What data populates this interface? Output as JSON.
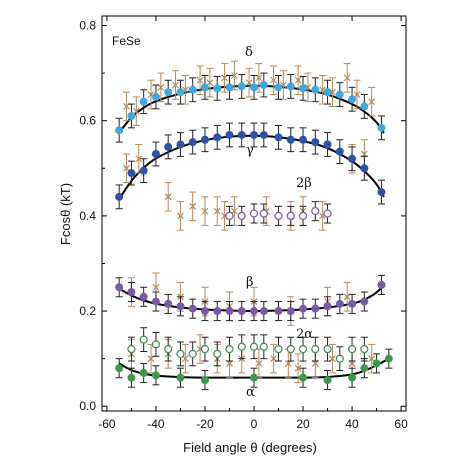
{
  "chart_data": {
    "type": "scatter",
    "title": "",
    "annotation": "FeSe",
    "xlabel": "Field angle θ (degrees)",
    "ylabel": "Fcosθ (kT)",
    "xlim": [
      -62,
      62
    ],
    "ylim": [
      -0.01,
      0.82
    ],
    "xticks": [
      -60,
      -40,
      -20,
      0,
      20,
      40,
      60
    ],
    "yticks": [
      0.0,
      0.2,
      0.4,
      0.6,
      0.8
    ],
    "grid": false,
    "legend": "none",
    "colors": {
      "delta": "#3fa9df",
      "gamma": "#2d53a8",
      "beta": "#7a5aa8",
      "alpha": "#3a9a4a",
      "two_beta": "#7a5aa8",
      "two_alpha": "#3f8a55",
      "crosses": "#b38a5c",
      "fit": "#000000",
      "errorbar": "#222222"
    },
    "series": [
      {
        "name": "δ",
        "marker": "filled-circle",
        "color_key": "delta",
        "x": [
          -55,
          -50,
          -45,
          -40,
          -35,
          -30,
          -25,
          -20,
          -15,
          -10,
          -5,
          0,
          4,
          10,
          15,
          20,
          25,
          30,
          35,
          40,
          45,
          52
        ],
        "y": [
          0.58,
          0.61,
          0.64,
          0.65,
          0.66,
          0.66,
          0.665,
          0.67,
          0.668,
          0.67,
          0.672,
          0.67,
          0.675,
          0.67,
          0.672,
          0.668,
          0.665,
          0.66,
          0.655,
          0.645,
          0.63,
          0.585
        ],
        "err": 0.025,
        "fit": {
          "x": [
            -55,
            -50,
            -45,
            -40,
            -30,
            -20,
            -10,
            0,
            10,
            20,
            30,
            40,
            45,
            50,
            53
          ],
          "y": [
            0.575,
            0.608,
            0.628,
            0.642,
            0.658,
            0.667,
            0.672,
            0.674,
            0.672,
            0.666,
            0.656,
            0.636,
            0.62,
            0.598,
            0.574
          ]
        }
      },
      {
        "name": "γ",
        "marker": "filled-circle",
        "color_key": "gamma",
        "x": [
          -55,
          -50,
          -45,
          -40,
          -35,
          -30,
          -25,
          -20,
          -15,
          -10,
          -5,
          0,
          4,
          10,
          15,
          20,
          25,
          30,
          35,
          40,
          45,
          52
        ],
        "y": [
          0.44,
          0.49,
          0.495,
          0.53,
          0.545,
          0.55,
          0.555,
          0.56,
          0.565,
          0.57,
          0.57,
          0.57,
          0.57,
          0.565,
          0.56,
          0.56,
          0.555,
          0.55,
          0.535,
          0.52,
          0.5,
          0.45
        ],
        "err": 0.025,
        "fit": {
          "x": [
            -55,
            -50,
            -45,
            -40,
            -30,
            -20,
            -10,
            0,
            10,
            20,
            30,
            40,
            45,
            50,
            53
          ],
          "y": [
            0.435,
            0.475,
            0.502,
            0.522,
            0.546,
            0.56,
            0.567,
            0.569,
            0.566,
            0.558,
            0.544,
            0.516,
            0.495,
            0.468,
            0.44
          ]
        }
      },
      {
        "name": "2β",
        "marker": "open-circle",
        "color_key": "two_beta",
        "x": [
          -10,
          -5,
          0,
          4,
          10,
          15,
          20,
          25,
          30
        ],
        "y": [
          0.4,
          0.4,
          0.405,
          0.405,
          0.4,
          0.4,
          0.4,
          0.41,
          0.405
        ],
        "err": 0.02
      },
      {
        "name": "β",
        "marker": "filled-circle",
        "color_key": "beta",
        "x": [
          -55,
          -50,
          -45,
          -40,
          -35,
          -30,
          -25,
          -20,
          -15,
          -10,
          -5,
          0,
          4,
          10,
          15,
          20,
          25,
          30,
          35,
          40,
          45,
          52
        ],
        "y": [
          0.25,
          0.24,
          0.23,
          0.22,
          0.215,
          0.21,
          0.205,
          0.2,
          0.2,
          0.2,
          0.2,
          0.2,
          0.2,
          0.2,
          0.2,
          0.205,
          0.205,
          0.21,
          0.215,
          0.215,
          0.22,
          0.255
        ],
        "err": 0.02,
        "fit": {
          "x": [
            -56,
            -50,
            -45,
            -40,
            -30,
            -20,
            -10,
            0,
            10,
            20,
            30,
            40,
            45,
            50,
            53
          ],
          "y": [
            0.25,
            0.232,
            0.222,
            0.215,
            0.207,
            0.203,
            0.201,
            0.2,
            0.201,
            0.203,
            0.207,
            0.215,
            0.223,
            0.238,
            0.255
          ]
        }
      },
      {
        "name": "2α",
        "marker": "open-circle",
        "color_key": "two_alpha",
        "x": [
          -50,
          -45,
          -40,
          -35,
          -30,
          -25,
          -20,
          -15,
          -10,
          -5,
          0,
          4,
          10,
          15,
          20,
          25,
          30,
          35,
          40,
          45
        ],
        "y": [
          0.12,
          0.14,
          0.13,
          0.12,
          0.11,
          0.11,
          0.12,
          0.11,
          0.12,
          0.125,
          0.125,
          0.125,
          0.12,
          0.12,
          0.12,
          0.12,
          0.12,
          0.1,
          0.12,
          0.12
        ],
        "err": 0.025
      },
      {
        "name": "α",
        "marker": "filled-circle",
        "color_key": "alpha",
        "x": [
          -55,
          -50,
          -45,
          -40,
          -30,
          -20,
          0,
          20,
          30,
          40,
          45,
          50,
          55
        ],
        "y": [
          0.08,
          0.06,
          0.07,
          0.065,
          0.06,
          0.055,
          0.06,
          0.06,
          0.055,
          0.06,
          0.08,
          0.09,
          0.1
        ],
        "err": 0.02,
        "fit": {
          "x": [
            -55,
            -50,
            -45,
            -40,
            -30,
            -20,
            -10,
            0,
            10,
            20,
            30,
            40,
            45,
            50,
            55
          ],
          "y": [
            0.09,
            0.075,
            0.068,
            0.064,
            0.061,
            0.06,
            0.06,
            0.06,
            0.06,
            0.06,
            0.061,
            0.066,
            0.074,
            0.086,
            0.1
          ]
        }
      },
      {
        "name": "",
        "marker": "cross",
        "color_key": "crosses",
        "x": [
          -52,
          -48,
          -42,
          -38,
          -32,
          -28,
          -22,
          -18,
          -12,
          -8,
          -2,
          2,
          8,
          12,
          18,
          22,
          28,
          32,
          38,
          42,
          48,
          -52,
          -47,
          -35,
          -30,
          -25,
          -20,
          -15,
          -12,
          -8,
          5,
          15,
          20,
          28,
          40,
          45,
          -50,
          -40,
          -30,
          -20,
          -10,
          0,
          15,
          30,
          38
        ],
        "y": [
          0.63,
          0.62,
          0.655,
          0.67,
          0.675,
          0.665,
          0.685,
          0.68,
          0.69,
          0.695,
          0.68,
          0.69,
          0.685,
          0.675,
          0.685,
          0.67,
          0.665,
          0.66,
          0.69,
          0.655,
          0.64,
          0.5,
          0.52,
          0.44,
          0.4,
          0.42,
          0.41,
          0.41,
          0.4,
          0.41,
          0.41,
          0.4,
          0.41,
          0.4,
          0.52,
          0.53,
          0.24,
          0.25,
          0.23,
          0.22,
          0.21,
          0.22,
          0.2,
          0.22,
          0.23
        ],
        "err": 0.03
      },
      {
        "name": "",
        "marker": "cross",
        "color_key": "crosses",
        "x": [
          -50,
          -42,
          -35,
          -28,
          -22,
          -15,
          -10,
          -5,
          2,
          8,
          14,
          18,
          25,
          32,
          40,
          48
        ],
        "y": [
          0.11,
          0.1,
          0.11,
          0.1,
          0.12,
          0.1,
          0.09,
          0.1,
          0.09,
          0.1,
          0.09,
          0.08,
          0.09,
          0.1,
          0.09,
          0.1
        ],
        "err": 0.03
      }
    ],
    "labels": {
      "delta": "δ",
      "gamma": "γ",
      "two_beta": "2β",
      "beta": "β",
      "two_alpha": "2α",
      "alpha": "α"
    }
  }
}
